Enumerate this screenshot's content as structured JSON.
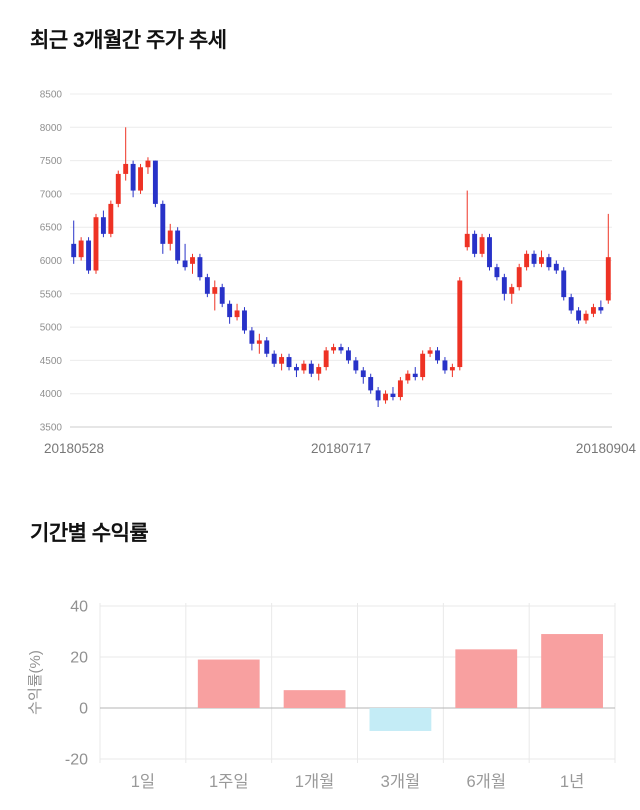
{
  "page": {
    "price_chart_title": "최근 3개월간 주가 추세",
    "return_chart_title": "기간별 수익률"
  },
  "chart_data": [
    {
      "type": "candlestick",
      "title": "최근 3개월간 주가 추세",
      "ylim": [
        3500,
        8500
      ],
      "ytick_step": 500,
      "xtick_labels": [
        "20180528",
        "20180717",
        "20180904"
      ],
      "up_color": "#ee3224",
      "down_color": "#2832c8",
      "grid_color": "#ececec",
      "axis_color": "#cccccc",
      "tick_text_color": "#8f8f8f",
      "candles": [
        [
          6250,
          6600,
          5950,
          6050
        ],
        [
          6050,
          6350,
          6000,
          6300
        ],
        [
          6300,
          6350,
          5800,
          5850
        ],
        [
          5850,
          6700,
          5800,
          6650
        ],
        [
          6650,
          6750,
          6350,
          6400
        ],
        [
          6400,
          6900,
          6350,
          6850
        ],
        [
          6850,
          7350,
          6800,
          7300
        ],
        [
          7300,
          8000,
          7200,
          7450
        ],
        [
          7450,
          7500,
          6950,
          7050
        ],
        [
          7050,
          7450,
          7000,
          7400
        ],
        [
          7400,
          7550,
          7300,
          7500
        ],
        [
          7500,
          7500,
          6800,
          6850
        ],
        [
          6850,
          6900,
          6100,
          6250
        ],
        [
          6250,
          6550,
          6150,
          6450
        ],
        [
          6450,
          6500,
          5950,
          6000
        ],
        [
          6000,
          6250,
          5850,
          5900
        ],
        [
          5950,
          6100,
          5800,
          6050
        ],
        [
          6050,
          6100,
          5700,
          5750
        ],
        [
          5750,
          5800,
          5450,
          5500
        ],
        [
          5500,
          5700,
          5250,
          5600
        ],
        [
          5600,
          5650,
          5300,
          5350
        ],
        [
          5350,
          5400,
          5050,
          5150
        ],
        [
          5150,
          5350,
          5100,
          5250
        ],
        [
          5250,
          5300,
          4900,
          4950
        ],
        [
          4950,
          5000,
          4650,
          4750
        ],
        [
          4750,
          4900,
          4600,
          4800
        ],
        [
          4800,
          4850,
          4550,
          4600
        ],
        [
          4600,
          4650,
          4400,
          4450
        ],
        [
          4450,
          4600,
          4350,
          4550
        ],
        [
          4550,
          4600,
          4350,
          4400
        ],
        [
          4400,
          4450,
          4250,
          4350
        ],
        [
          4350,
          4500,
          4300,
          4450
        ],
        [
          4450,
          4500,
          4250,
          4300
        ],
        [
          4300,
          4450,
          4200,
          4400
        ],
        [
          4400,
          4700,
          4350,
          4650
        ],
        [
          4650,
          4750,
          4600,
          4700
        ],
        [
          4700,
          4750,
          4600,
          4650
        ],
        [
          4650,
          4700,
          4450,
          4500
        ],
        [
          4500,
          4550,
          4300,
          4350
        ],
        [
          4350,
          4400,
          4150,
          4250
        ],
        [
          4250,
          4300,
          4000,
          4050
        ],
        [
          4050,
          4100,
          3800,
          3900
        ],
        [
          3900,
          4050,
          3850,
          4000
        ],
        [
          4000,
          4100,
          3900,
          3950
        ],
        [
          3950,
          4250,
          3900,
          4200
        ],
        [
          4200,
          4350,
          4150,
          4300
        ],
        [
          4300,
          4400,
          4200,
          4250
        ],
        [
          4250,
          4650,
          4200,
          4600
        ],
        [
          4600,
          4700,
          4550,
          4650
        ],
        [
          4650,
          4700,
          4450,
          4500
        ],
        [
          4500,
          4550,
          4300,
          4350
        ],
        [
          4350,
          4450,
          4250,
          4400
        ],
        [
          4400,
          5750,
          4350,
          5700
        ],
        [
          6200,
          7050,
          6150,
          6400
        ],
        [
          6400,
          6450,
          6050,
          6100
        ],
        [
          6100,
          6400,
          6050,
          6350
        ],
        [
          6350,
          6400,
          5850,
          5900
        ],
        [
          5900,
          5950,
          5700,
          5750
        ],
        [
          5750,
          5800,
          5400,
          5500
        ],
        [
          5500,
          5650,
          5350,
          5600
        ],
        [
          5600,
          5950,
          5550,
          5900
        ],
        [
          5900,
          6150,
          5850,
          6100
        ],
        [
          6100,
          6150,
          5900,
          5950
        ],
        [
          5950,
          6150,
          5900,
          6050
        ],
        [
          6050,
          6100,
          5850,
          5900
        ],
        [
          5950,
          6000,
          5800,
          5850
        ],
        [
          5850,
          5900,
          5400,
          5450
        ],
        [
          5450,
          5500,
          5200,
          5250
        ],
        [
          5250,
          5300,
          5050,
          5100
        ],
        [
          5100,
          5250,
          5050,
          5200
        ],
        [
          5200,
          5350,
          5150,
          5300
        ],
        [
          5300,
          5400,
          5200,
          5250
        ],
        [
          5400,
          6700,
          5350,
          6050
        ]
      ]
    },
    {
      "type": "bar",
      "title": "기간별 수익률",
      "categories": [
        "1일",
        "1주일",
        "1개월",
        "3개월",
        "6개월",
        "1년"
      ],
      "values": [
        0,
        19,
        7,
        -9,
        23,
        29
      ],
      "ylabel": "수익률(%)",
      "ylim": [
        -20,
        40
      ],
      "yticks": [
        40,
        20,
        0,
        -20
      ],
      "positive_color": "#f8a0a0",
      "negative_color": "#c4ecf6",
      "grid_color": "#e9e9e9",
      "zero_line_color": "#b5b5b5",
      "tick_text_color": "#919191"
    }
  ]
}
